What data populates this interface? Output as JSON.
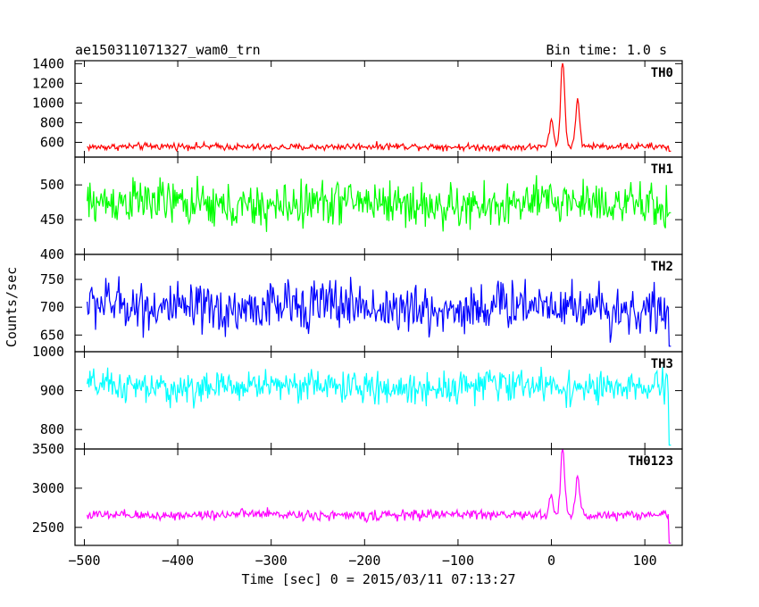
{
  "header": {
    "title": "ae150311071327_wam0_trn",
    "bin_time": "Bin time: 1.0 s"
  },
  "chart_data": {
    "type": "line",
    "xlabel": "Time [sec] 0 = 2015/03/11 07:13:27",
    "ylabel": "Counts/sec",
    "xlim": [
      -510,
      140
    ],
    "x_ticks": [
      -500,
      -400,
      -300,
      -200,
      -100,
      0,
      100
    ],
    "x_step": 1.0,
    "x_range": [
      -497,
      128
    ],
    "grid": false,
    "panels": [
      {
        "name": "TH0",
        "color": "#ff0000",
        "ylim": [
          450,
          1430
        ],
        "y_ticks": [
          600,
          800,
          1000,
          1200,
          1400
        ],
        "baseline": 555,
        "noise": 22,
        "peaks": [
          [
            0,
            820
          ],
          [
            12,
            1410
          ],
          [
            28,
            1010
          ]
        ],
        "end_value": 510
      },
      {
        "name": "TH1",
        "color": "#00ff00",
        "ylim": [
          400,
          540
        ],
        "y_ticks": [
          400,
          450,
          500
        ],
        "baseline": 472,
        "noise": 20,
        "peaks": [],
        "end_value": 460
      },
      {
        "name": "TH2",
        "color": "#0000ff",
        "ylim": [
          620,
          795
        ],
        "y_ticks": [
          650,
          700,
          750
        ],
        "baseline": 700,
        "noise": 28,
        "peaks": [],
        "end_value": 630
      },
      {
        "name": "TH3",
        "color": "#00ffff",
        "ylim": [
          750,
          1000
        ],
        "y_ticks": [
          800,
          900,
          1000
        ],
        "baseline": 910,
        "noise": 25,
        "peaks": [],
        "end_value": 760
      },
      {
        "name": "TH0123",
        "color": "#ff00ff",
        "ylim": [
          2270,
          3500
        ],
        "y_ticks": [
          2500,
          3000,
          3500
        ],
        "baseline": 2660,
        "noise": 40,
        "peaks": [
          [
            0,
            2900
          ],
          [
            12,
            3480
          ],
          [
            28,
            3160
          ]
        ],
        "end_value": 2300
      }
    ]
  }
}
